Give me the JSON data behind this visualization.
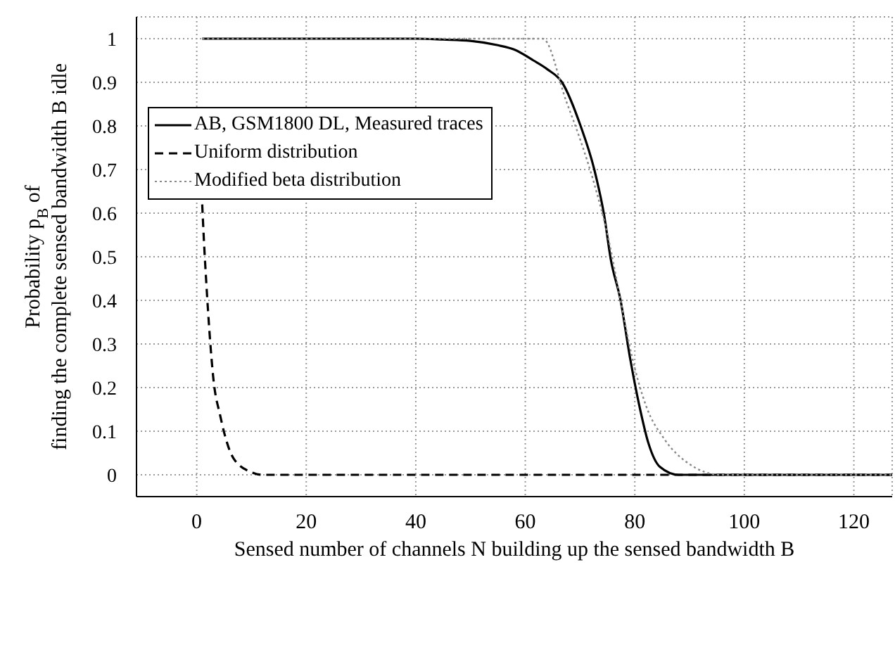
{
  "chart_data": {
    "type": "line",
    "xlabel": "Sensed number of channels N building up the sensed bandwidth B",
    "ylabel": "Probability p$_{B}$ of\nfinding the complete sensed bandwidth B idle",
    "xlim": [
      -11,
      127
    ],
    "xticks": [
      0,
      20,
      40,
      60,
      80,
      100,
      120
    ],
    "ylim": [
      -0.05,
      1.05
    ],
    "yticks": [
      0,
      0.1,
      0.2,
      0.3,
      0.4,
      0.5,
      0.6,
      0.7,
      0.8,
      0.9,
      1
    ],
    "grid": true,
    "legend": "top left",
    "marker": "none",
    "series": [
      {
        "name": "AB, GSM1800 DL, Measured traces",
        "color": "#000000",
        "line_style": "solid",
        "x": [
          1,
          20,
          40,
          45,
          50,
          55,
          58,
          61.5,
          64,
          66.7,
          70.1,
          72.6,
          74.4,
          75.6,
          77.4,
          79.1,
          80.8,
          82.5,
          84.6,
          88,
          100,
          127
        ],
        "values": [
          1,
          1,
          1,
          0.998,
          0.995,
          0.985,
          0.975,
          0.95,
          0.93,
          0.9,
          0.8,
          0.7,
          0.595,
          0.495,
          0.4,
          0.27,
          0.16,
          0.072,
          0.018,
          0,
          0,
          0
        ]
      },
      {
        "name": "Uniform distribution",
        "color": "#000000",
        "line_style": "dashed",
        "x": [
          1,
          1.3,
          1.7,
          2.4,
          3,
          4.3,
          6.8,
          10.2,
          12,
          127
        ],
        "values": [
          0.62,
          0.54,
          0.45,
          0.315,
          0.225,
          0.135,
          0.036,
          0.005,
          0,
          0
        ]
      },
      {
        "name": "Modified beta distribution",
        "color": "#888888",
        "line_style": "dotted",
        "x": [
          1,
          63.2,
          67.5,
          70.1,
          72.6,
          75.2,
          77.4,
          79.5,
          82,
          85.5,
          89.7,
          95.7,
          127
        ],
        "values": [
          1,
          1,
          0.856,
          0.766,
          0.667,
          0.54,
          0.4,
          0.27,
          0.16,
          0.08,
          0.027,
          0,
          0
        ]
      }
    ]
  }
}
